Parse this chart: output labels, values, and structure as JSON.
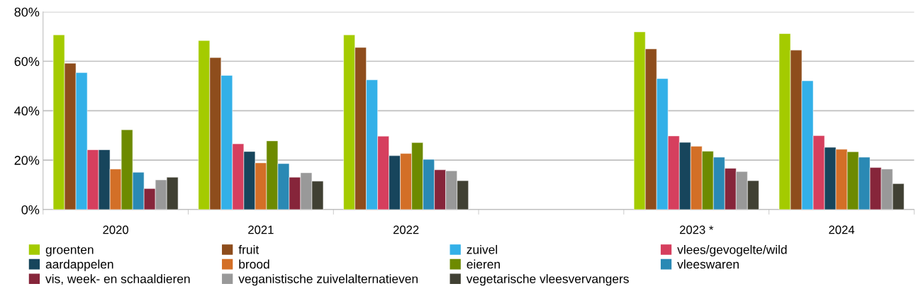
{
  "chart_data": {
    "type": "bar",
    "categories": [
      "2020",
      "2021",
      "2022",
      null,
      "2023 *",
      "2024"
    ],
    "series": [
      {
        "name": "groenten",
        "color": "#a4cb00",
        "values": [
          70.7,
          68.4,
          70.7,
          null,
          71.9,
          71.2
        ]
      },
      {
        "name": "fruit",
        "color": "#8e4d1c",
        "values": [
          59.2,
          61.5,
          65.6,
          null,
          65.0,
          64.5
        ]
      },
      {
        "name": "zuivel",
        "color": "#33b0e8",
        "values": [
          55.4,
          54.3,
          52.5,
          null,
          53.0,
          52.1
        ]
      },
      {
        "name": "vlees/gevogelte/wild",
        "color": "#d63f5e",
        "values": [
          24.2,
          26.6,
          29.7,
          null,
          29.8,
          29.9
        ]
      },
      {
        "name": "aardappelen",
        "color": "#17455c",
        "values": [
          24.2,
          23.5,
          21.8,
          null,
          27.2,
          25.2
        ]
      },
      {
        "name": "brood",
        "color": "#d36f27",
        "values": [
          16.4,
          18.9,
          22.7,
          null,
          25.6,
          24.4
        ]
      },
      {
        "name": "eieren",
        "color": "#6d8a00",
        "values": [
          32.3,
          27.8,
          27.1,
          null,
          23.6,
          23.4
        ]
      },
      {
        "name": "vleeswaren",
        "color": "#2a89b4",
        "values": [
          15.1,
          18.6,
          20.3,
          null,
          21.2,
          21.2
        ]
      },
      {
        "name": "vis, week- en schaaldieren",
        "color": "#86253a",
        "values": [
          8.5,
          13.1,
          16.1,
          null,
          16.7,
          17.0
        ]
      },
      {
        "name": "veganistische zuivelalternatieven",
        "color": "#999999",
        "values": [
          12.0,
          14.9,
          15.7,
          null,
          15.4,
          16.4
        ]
      },
      {
        "name": "vegetarische vleesvervangers",
        "color": "#404033",
        "values": [
          13.1,
          11.5,
          11.7,
          null,
          11.7,
          10.5
        ]
      }
    ],
    "ylim": [
      0,
      80
    ],
    "yticks": [
      {
        "value": 0,
        "label": "0%"
      },
      {
        "value": 20,
        "label": "20%"
      },
      {
        "value": 40,
        "label": "40%"
      },
      {
        "value": 60,
        "label": "60%"
      },
      {
        "value": 80,
        "label": "80%"
      }
    ],
    "grid": "y",
    "legend": "bottom"
  }
}
